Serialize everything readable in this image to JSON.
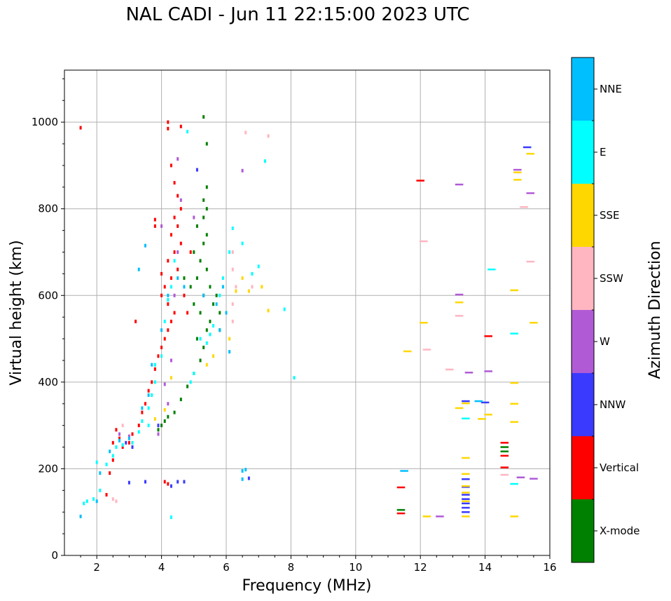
{
  "title": "NAL CADI - Jun 11 22:15:00 2023 UTC",
  "colors": {
    "X-mode": "#008000",
    "Vertical": "#ff0000",
    "NNW": "#3a3aff",
    "W": "#b05ad6",
    "SSW": "#ffb6c1",
    "SSE": "#ffd700",
    "E": "#00ffff",
    "NNE": "#00bfff",
    "grid": "#b0b0b0"
  },
  "chart_data": {
    "type": "scatter",
    "title": "NAL CADI - Jun 11 22:15:00 2023 UTC",
    "xlabel": "Frequency (MHz)",
    "ylabel": "Virtual height (km)",
    "xlim": [
      1,
      16
    ],
    "ylim": [
      0,
      1120
    ],
    "xticks": [
      2,
      4,
      6,
      8,
      10,
      12,
      14,
      16
    ],
    "yticks": [
      0,
      200,
      400,
      600,
      800,
      1000
    ],
    "grid": true,
    "colorbar": {
      "label": "Azimuth Direction",
      "categories": [
        "X-mode",
        "Vertical",
        "NNW",
        "W",
        "SSW",
        "SSE",
        "E",
        "NNE"
      ]
    },
    "series": [
      {
        "name": "X-mode",
        "points": [
          [
            3.9,
            290
          ],
          [
            4.0,
            300
          ],
          [
            4.2,
            320
          ],
          [
            4.1,
            310
          ],
          [
            4.4,
            330
          ],
          [
            4.6,
            360
          ],
          [
            4.8,
            390
          ],
          [
            5.0,
            420
          ],
          [
            5.2,
            450
          ],
          [
            5.3,
            480
          ],
          [
            5.1,
            500
          ],
          [
            5.4,
            520
          ],
          [
            5.5,
            540
          ],
          [
            5.2,
            560
          ],
          [
            5.0,
            580
          ],
          [
            5.3,
            600
          ],
          [
            5.5,
            620
          ],
          [
            5.1,
            640
          ],
          [
            5.4,
            660
          ],
          [
            5.2,
            680
          ],
          [
            5.0,
            700
          ],
          [
            5.3,
            720
          ],
          [
            5.4,
            740
          ],
          [
            5.1,
            760
          ],
          [
            5.3,
            780
          ],
          [
            5.4,
            800
          ],
          [
            5.3,
            820
          ],
          [
            5.4,
            850
          ],
          [
            5.4,
            950
          ],
          [
            5.3,
            1012
          ],
          [
            5.6,
            580
          ],
          [
            5.7,
            600
          ],
          [
            5.8,
            560
          ],
          [
            4.9,
            620
          ],
          [
            4.7,
            640
          ],
          [
            5.8,
            520
          ],
          [
            11.4,
            105
          ],
          [
            14.6,
            250
          ],
          [
            14.6,
            240
          ]
        ]
      },
      {
        "name": "Vertical",
        "points": [
          [
            1.5,
            987
          ],
          [
            2.3,
            140
          ],
          [
            2.4,
            190
          ],
          [
            2.5,
            220
          ],
          [
            2.5,
            260
          ],
          [
            2.6,
            290
          ],
          [
            2.7,
            270
          ],
          [
            2.8,
            250
          ],
          [
            3.0,
            260
          ],
          [
            3.1,
            280
          ],
          [
            3.3,
            300
          ],
          [
            3.4,
            330
          ],
          [
            3.5,
            350
          ],
          [
            3.6,
            380
          ],
          [
            3.7,
            400
          ],
          [
            3.8,
            430
          ],
          [
            3.9,
            460
          ],
          [
            4.0,
            480
          ],
          [
            4.1,
            500
          ],
          [
            4.2,
            520
          ],
          [
            4.3,
            540
          ],
          [
            4.4,
            560
          ],
          [
            4.2,
            580
          ],
          [
            4.0,
            600
          ],
          [
            4.1,
            620
          ],
          [
            4.3,
            640
          ],
          [
            4.5,
            660
          ],
          [
            4.2,
            680
          ],
          [
            4.4,
            700
          ],
          [
            4.6,
            720
          ],
          [
            4.3,
            740
          ],
          [
            4.5,
            760
          ],
          [
            4.4,
            780
          ],
          [
            4.6,
            800
          ],
          [
            4.5,
            830
          ],
          [
            4.4,
            860
          ],
          [
            4.3,
            900
          ],
          [
            4.2,
            1000
          ],
          [
            4.2,
            985
          ],
          [
            4.6,
            990
          ],
          [
            4.1,
            170
          ],
          [
            4.2,
            165
          ],
          [
            3.8,
            775
          ],
          [
            3.8,
            760
          ],
          [
            4.7,
            600
          ],
          [
            4.8,
            560
          ],
          [
            4.9,
            700
          ],
          [
            12.0,
            865
          ],
          [
            11.4,
            157
          ],
          [
            11.4,
            97
          ],
          [
            14.1,
            506
          ],
          [
            14.6,
            260
          ],
          [
            14.6,
            230
          ],
          [
            14.6,
            203
          ],
          [
            3.2,
            540
          ],
          [
            4.0,
            650
          ]
        ]
      },
      {
        "name": "NNW",
        "points": [
          [
            2.9,
            260
          ],
          [
            3.1,
            250
          ],
          [
            3.0,
            168
          ],
          [
            3.5,
            170
          ],
          [
            4.5,
            170
          ],
          [
            4.7,
            170
          ],
          [
            4.3,
            160
          ],
          [
            3.9,
            300
          ],
          [
            5.1,
            890
          ],
          [
            6.7,
            178
          ],
          [
            13.4,
            356
          ],
          [
            13.4,
            176
          ],
          [
            13.4,
            158
          ],
          [
            13.4,
            140
          ],
          [
            13.4,
            130
          ],
          [
            13.4,
            120
          ],
          [
            13.4,
            110
          ],
          [
            13.4,
            100
          ],
          [
            14.0,
            353
          ],
          [
            15.3,
            942
          ]
        ]
      },
      {
        "name": "W",
        "points": [
          [
            2.7,
            280
          ],
          [
            3.0,
            275
          ],
          [
            3.9,
            280
          ],
          [
            4.1,
            395
          ],
          [
            4.2,
            350
          ],
          [
            4.4,
            600
          ],
          [
            4.5,
            700
          ],
          [
            4.6,
            820
          ],
          [
            4.5,
            915
          ],
          [
            5.0,
            780
          ],
          [
            6.5,
            888
          ],
          [
            12.6,
            90
          ],
          [
            13.2,
            856
          ],
          [
            13.2,
            602
          ],
          [
            13.5,
            422
          ],
          [
            14.1,
            425
          ],
          [
            15.0,
            890
          ],
          [
            15.4,
            836
          ],
          [
            15.1,
            180
          ],
          [
            15.5,
            177
          ],
          [
            4.0,
            760
          ],
          [
            4.3,
            450
          ]
        ]
      },
      {
        "name": "SSW",
        "points": [
          [
            2.6,
            125
          ],
          [
            2.5,
            130
          ],
          [
            2.8,
            300
          ],
          [
            6.2,
            700
          ],
          [
            6.2,
            660
          ],
          [
            6.3,
            620
          ],
          [
            6.2,
            580
          ],
          [
            6.2,
            540
          ],
          [
            6.6,
            976
          ],
          [
            6.8,
            620
          ],
          [
            7.3,
            968
          ],
          [
            12.1,
            725
          ],
          [
            12.2,
            475
          ],
          [
            12.9,
            429
          ],
          [
            13.2,
            553
          ],
          [
            14.6,
            186
          ],
          [
            15.2,
            804
          ],
          [
            15.4,
            678
          ]
        ]
      },
      {
        "name": "SSE",
        "points": [
          [
            3.8,
            315
          ],
          [
            4.1,
            336
          ],
          [
            4.3,
            410
          ],
          [
            5.6,
            460
          ],
          [
            5.4,
            440
          ],
          [
            6.1,
            500
          ],
          [
            6.0,
            560
          ],
          [
            6.3,
            610
          ],
          [
            6.5,
            640
          ],
          [
            6.7,
            610
          ],
          [
            7.1,
            620
          ],
          [
            7.3,
            565
          ],
          [
            11.6,
            471
          ],
          [
            12.1,
            537
          ],
          [
            12.2,
            90
          ],
          [
            13.2,
            340
          ],
          [
            13.2,
            584
          ],
          [
            13.4,
            351
          ],
          [
            13.4,
            225
          ],
          [
            13.4,
            188
          ],
          [
            13.4,
            160
          ],
          [
            13.4,
            145
          ],
          [
            13.4,
            125
          ],
          [
            13.4,
            90
          ],
          [
            13.9,
            315
          ],
          [
            14.1,
            325
          ],
          [
            14.9,
            612
          ],
          [
            14.9,
            398
          ],
          [
            14.9,
            350
          ],
          [
            14.9,
            308
          ],
          [
            14.9,
            90
          ],
          [
            15.0,
            867
          ],
          [
            15.0,
            884
          ],
          [
            15.4,
            927
          ],
          [
            15.5,
            537
          ]
        ]
      },
      {
        "name": "E",
        "points": [
          [
            1.6,
            120
          ],
          [
            1.7,
            125
          ],
          [
            1.9,
            130
          ],
          [
            2.1,
            150
          ],
          [
            2.0,
            215
          ],
          [
            2.3,
            210
          ],
          [
            2.5,
            230
          ],
          [
            2.6,
            250
          ],
          [
            2.8,
            255
          ],
          [
            3.1,
            260
          ],
          [
            3.3,
            285
          ],
          [
            3.4,
            310
          ],
          [
            3.6,
            300
          ],
          [
            3.6,
            340
          ],
          [
            3.7,
            370
          ],
          [
            3.8,
            400
          ],
          [
            3.8,
            440
          ],
          [
            4.0,
            460
          ],
          [
            4.1,
            540
          ],
          [
            4.2,
            590
          ],
          [
            4.3,
            620
          ],
          [
            4.4,
            680
          ],
          [
            4.9,
            400
          ],
          [
            5.0,
            420
          ],
          [
            5.2,
            500
          ],
          [
            5.4,
            490
          ],
          [
            5.5,
            510
          ],
          [
            5.6,
            530
          ],
          [
            5.8,
            600
          ],
          [
            5.9,
            640
          ],
          [
            6.1,
            700
          ],
          [
            6.2,
            755
          ],
          [
            6.5,
            720
          ],
          [
            6.8,
            650
          ],
          [
            7.0,
            667
          ],
          [
            7.2,
            910
          ],
          [
            7.8,
            568
          ],
          [
            4.8,
            978
          ],
          [
            4.3,
            88
          ],
          [
            8.1,
            410
          ],
          [
            13.4,
            316
          ],
          [
            14.2,
            660
          ],
          [
            14.9,
            512
          ],
          [
            14.9,
            165
          ]
        ]
      },
      {
        "name": "NNE",
        "points": [
          [
            1.5,
            90
          ],
          [
            2.0,
            125
          ],
          [
            2.1,
            190
          ],
          [
            2.4,
            240
          ],
          [
            2.7,
            265
          ],
          [
            3.0,
            270
          ],
          [
            3.4,
            340
          ],
          [
            3.6,
            370
          ],
          [
            3.7,
            440
          ],
          [
            4.0,
            520
          ],
          [
            4.2,
            600
          ],
          [
            4.5,
            640
          ],
          [
            4.7,
            620
          ],
          [
            5.3,
            600
          ],
          [
            5.7,
            580
          ],
          [
            5.9,
            620
          ],
          [
            6.0,
            560
          ],
          [
            6.1,
            470
          ],
          [
            5.8,
            520
          ],
          [
            6.5,
            195
          ],
          [
            6.6,
            198
          ],
          [
            6.5,
            176
          ],
          [
            3.3,
            660
          ],
          [
            3.5,
            715
          ],
          [
            11.5,
            195
          ],
          [
            13.8,
            356
          ]
        ]
      }
    ]
  }
}
